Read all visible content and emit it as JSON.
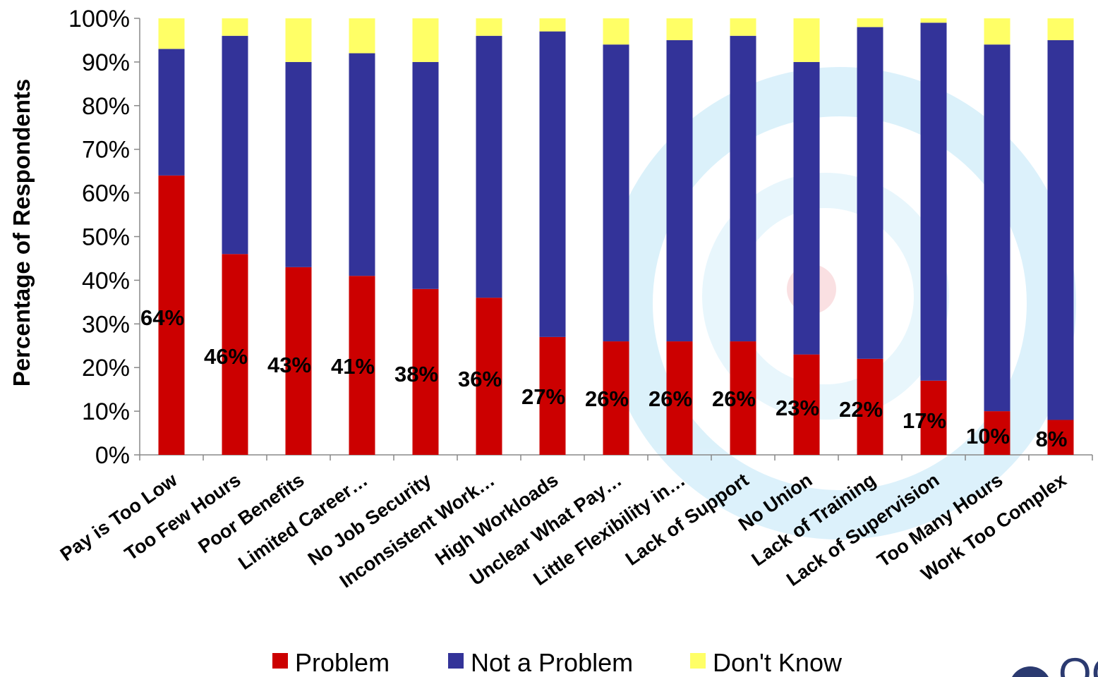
{
  "chart_data": {
    "type": "bar",
    "stacked": true,
    "ylabel": "Percentage of Respondents",
    "xlabel": "",
    "ylim": [
      0,
      100
    ],
    "yticks": [
      "0%",
      "10%",
      "20%",
      "30%",
      "40%",
      "50%",
      "60%",
      "70%",
      "80%",
      "90%",
      "100%"
    ],
    "grid": false,
    "legend_position": "bottom",
    "categories": [
      "Pay is Too Low",
      "Too Few Hours",
      "Poor Benefits",
      "Limited Career…",
      "No Job Security",
      "Inconsistent Work…",
      "High Workloads",
      "Unclear What Pay…",
      "Little Flexibility in…",
      "Lack of Support",
      "No Union",
      "Lack of Training",
      "Lack of Supervision",
      "Too Many Hours",
      "Work Too Complex"
    ],
    "series": [
      {
        "name": "Problem",
        "color": "#cc0000",
        "values": [
          64,
          46,
          43,
          41,
          38,
          36,
          27,
          26,
          26,
          26,
          23,
          22,
          17,
          10,
          8
        ]
      },
      {
        "name": "Not a Problem",
        "color": "#333399",
        "values": [
          29,
          50,
          47,
          51,
          52,
          60,
          70,
          68,
          69,
          70,
          67,
          76,
          82,
          84,
          87
        ]
      },
      {
        "name": "Don't Know",
        "color": "#ffff66",
        "values": [
          7,
          4,
          10,
          8,
          10,
          4,
          3,
          6,
          5,
          4,
          10,
          2,
          1,
          6,
          5
        ]
      }
    ],
    "data_labels": [
      "64%",
      "46%",
      "43%",
      "41%",
      "38%",
      "36%",
      "27%",
      "26%",
      "26%",
      "26%",
      "23%",
      "22%",
      "17%",
      "10%",
      "8%"
    ]
  },
  "logo": {
    "text": "OCSA"
  }
}
